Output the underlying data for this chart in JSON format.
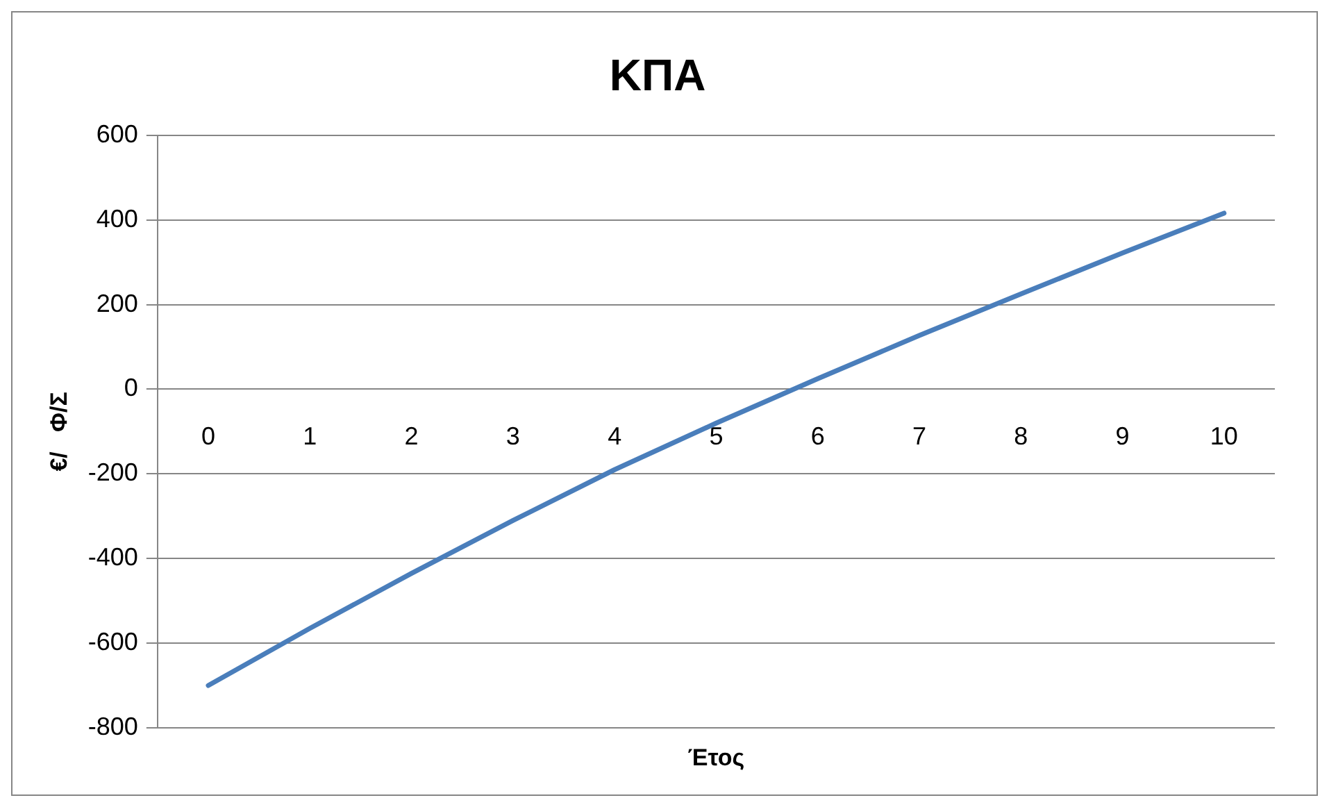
{
  "chart_data": {
    "type": "line",
    "title": "ΚΠΑ",
    "xlabel": "Έτος",
    "ylabel": "€/   Φ/Σ",
    "categories": [
      "0",
      "1",
      "2",
      "3",
      "4",
      "5",
      "6",
      "7",
      "8",
      "9",
      "10"
    ],
    "series": [
      {
        "color": "#4a7ebb",
        "values": [
          -700,
          -565,
          -435,
          -310,
          -190,
          -80,
          25,
          127,
          225,
          322,
          416
        ]
      }
    ],
    "ylim": [
      -800,
      600
    ],
    "yticks": [
      -800,
      -600,
      -400,
      -200,
      0,
      200,
      400,
      600
    ],
    "grid": "y",
    "legend": false,
    "marker": "none"
  }
}
